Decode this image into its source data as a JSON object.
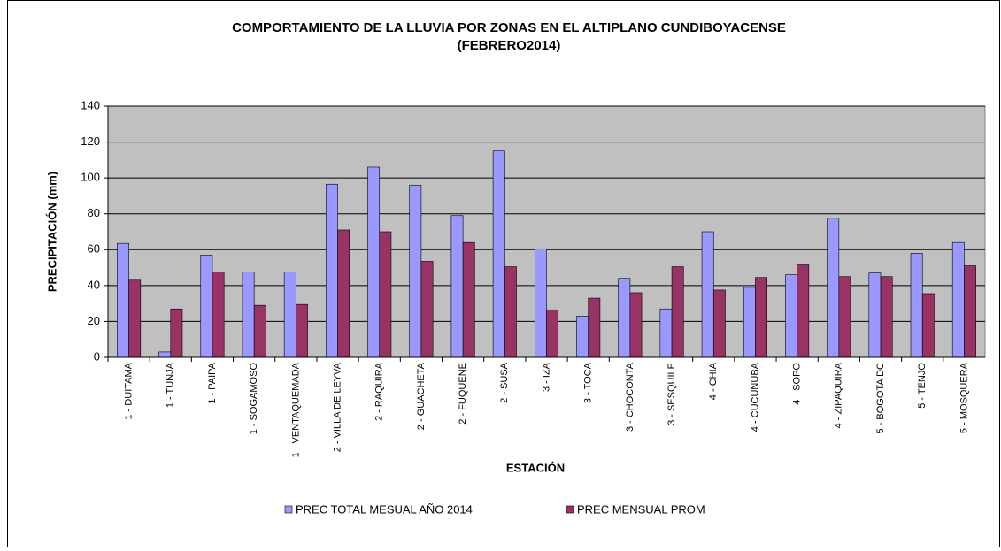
{
  "chart_data": {
    "type": "bar",
    "title": "COMPORTAMIENTO DE LA LLUVIA POR ZONAS EN EL ALTIPLANO CUNDIBOYACENSE",
    "subtitle": "(FEBRERO2014)",
    "xlabel": "ESTACIÓN",
    "ylabel": "PRECIPITACIÓN (mm)",
    "categories": [
      "1 - DUITAMA",
      "1 - TUNJA",
      "1 - PAIPA",
      "1 - SOGAMOSO",
      "1 - VENTAQUEMADA",
      "2 - VILLA DE LEYVA",
      "2 - RAQUIRA",
      "2 - GUACHETA",
      "2 - FUQUENE",
      "2 - SUSA",
      "3 - IZA",
      "3 - TOCA",
      "3 - CHOCONTA",
      "3 - SESQUILE",
      "4 - CHIA",
      "4 - CUCUNUBA",
      "4 - SOPO",
      "4 - ZIPAQUIRA",
      "5 - BOGOTA DC",
      "5 - TENJO",
      "5 - MOSQUERA"
    ],
    "series": [
      {
        "name": "PREC TOTAL MESUAL AÑO 2014",
        "color": "#9999ff",
        "values": [
          63.5,
          3,
          57,
          47.5,
          47.5,
          96.5,
          106,
          96,
          79,
          115,
          60.5,
          23,
          44,
          27,
          70,
          39,
          46,
          77.5,
          47,
          58,
          64
        ]
      },
      {
        "name": "PREC MENSUAL PROM",
        "color": "#993366",
        "values": [
          43,
          27,
          47.5,
          29,
          29.5,
          71,
          70,
          53.5,
          64,
          50.5,
          26.5,
          33,
          36,
          50.5,
          37.5,
          44.5,
          51.5,
          45,
          45,
          35.5,
          51
        ]
      }
    ],
    "ylim": [
      0,
      140
    ],
    "yticks": [
      0,
      20,
      40,
      60,
      80,
      100,
      120,
      140
    ],
    "plot_background": "#c0c0c0",
    "legend": "bottom"
  }
}
